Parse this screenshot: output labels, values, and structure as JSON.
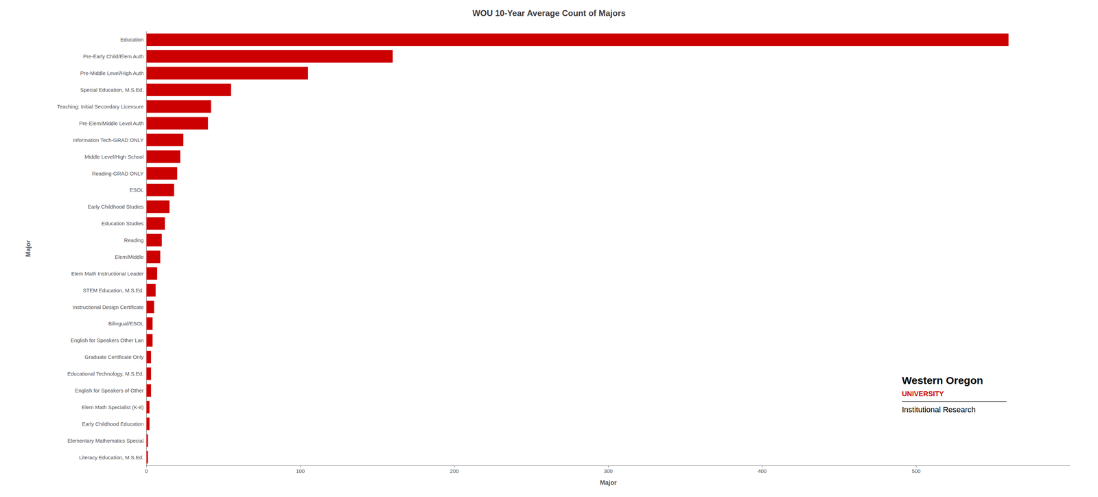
{
  "chart_data": {
    "type": "bar",
    "orientation": "horizontal",
    "title": "WOU 10-Year Average Count of Majors",
    "xlabel": "Major",
    "ylabel": "Major",
    "categories": [
      "Literacy Education, M.S.Ed.",
      "Elementary Mathematics Special",
      "Early Childhood Education",
      "Elem Math Specialist (K-8)",
      "English for Speakers of Other",
      "Educational Technology, M.S.Ed.",
      "Graduate Certificate Only",
      "English for Speakers Other Lan",
      "Bilingual/ESOL",
      "Instructional Design Certificate",
      "STEM Education, M.S.Ed.",
      "Elem Math Instructional Leader",
      "Elem/Middle",
      "Reading",
      "Education Studies",
      "Early Childhood Studies",
      "ESOL",
      "Reading-GRAD ONLY",
      "Middle Level/High School",
      "Information Tech-GRAD ONLY",
      "Pre-Elem/Middle Level Auth",
      "Teaching: Initial Secondary Licensure",
      "Special Education, M.S.Ed.",
      "Pre-Middle Level/High Auth",
      "Pre-Early Child/Elem Auth",
      "Education"
    ],
    "values": [
      1,
      1,
      2,
      2,
      3,
      3,
      3,
      4,
      4,
      5,
      6,
      7,
      9,
      10,
      12,
      15,
      18,
      20,
      22,
      24,
      40,
      42,
      55,
      105,
      160,
      560
    ],
    "color": "#CC0000",
    "xlim": [
      0,
      600
    ],
    "xticks": [
      0,
      100,
      200,
      300,
      400,
      500
    ],
    "grid": false,
    "annotations": [
      "Western Oregon",
      "UNIVERSITY",
      "Institutional Research"
    ]
  }
}
